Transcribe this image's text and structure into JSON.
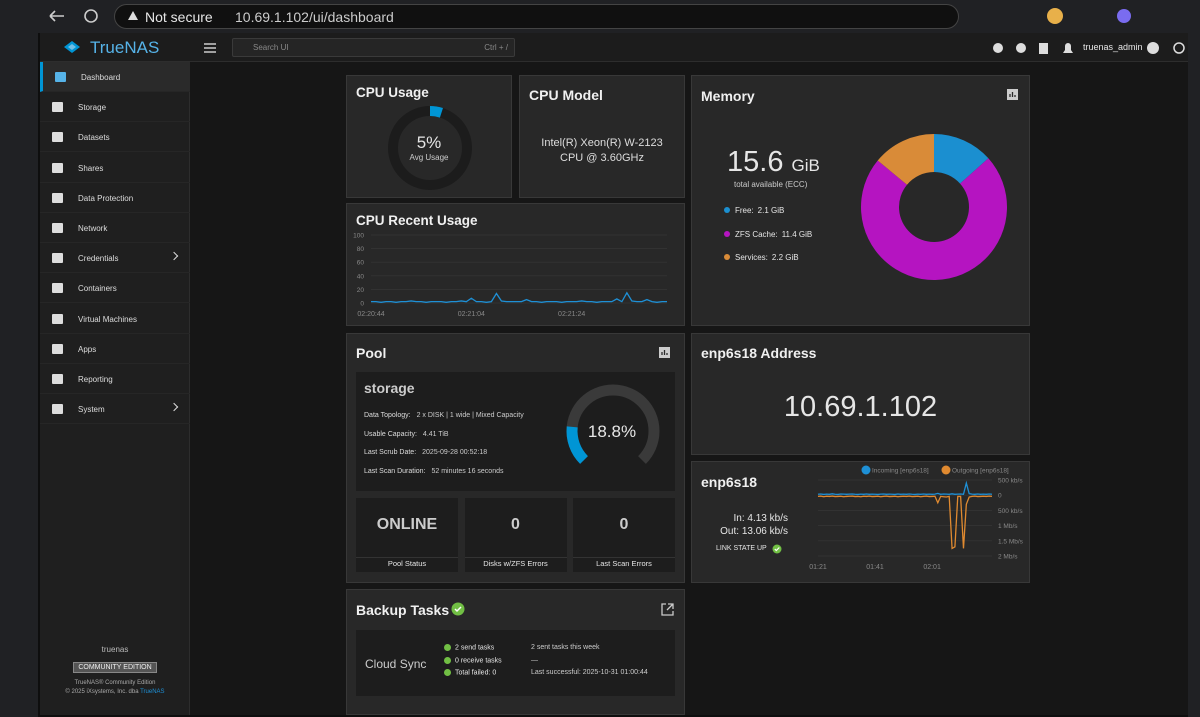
{
  "browser": {
    "security": "Not secure",
    "url": "10.69.1.102/ui/dashboard"
  },
  "header": {
    "brand": "TrueNAS",
    "search": "Search UI",
    "shortcut": "Ctrl + /",
    "user": "truenas_admin"
  },
  "sidebar": {
    "items": [
      "Dashboard",
      "Storage",
      "Datasets",
      "Shares",
      "Data Protection",
      "Network",
      "Credentials",
      "Containers",
      "Virtual Machines",
      "Apps",
      "Reporting",
      "System"
    ],
    "hostname": "truenas",
    "edition": "COMMUNITY EDITION",
    "footer": "TrueNAS® Community Edition",
    "copyright": "© 2025 iXsystems, Inc. dba",
    "link": "TrueNAS"
  },
  "cpu_usage": {
    "title": "CPU Usage",
    "value": 5,
    "value_label": "5%",
    "caption": "Avg Usage"
  },
  "cpu_model": {
    "title": "CPU Model",
    "text": "Intel(R) Xeon(R) W-2123 CPU @ 3.60GHz"
  },
  "memory": {
    "title": "Memory",
    "total": 15.6,
    "unit": "GiB",
    "caption": "total available (ECC)"
  },
  "pool": {
    "title": "Pool",
    "name": "storage",
    "rows": [
      [
        "Data Topology:",
        "2 x DISK | 1 wide | Mixed Capacity"
      ],
      [
        "Usable Capacity:",
        "4.41 TiB"
      ],
      [
        "Last Scrub Date:",
        "2025-09-28 00:52:18"
      ],
      [
        "Last Scan Duration:",
        "52 minutes 16 seconds"
      ]
    ],
    "used": 18.8,
    "used_label": "18.8%",
    "stats": [
      [
        "ONLINE",
        "Pool Status"
      ],
      [
        0,
        "Disks w/ZFS Errors"
      ],
      [
        0,
        "Last Scan Errors"
      ]
    ]
  },
  "address": {
    "title": "enp6s18 Address",
    "ip": "10.69.1.102"
  },
  "network": {
    "title": "enp6s18",
    "in_label": "In:",
    "in_value": "4.13 kb/s",
    "out_label": "Out:",
    "out_value": "13.06 kb/s",
    "link": "LINK STATE UP"
  },
  "backup": {
    "title": "Backup Tasks",
    "type": "Cloud Sync",
    "items": [
      "2 send tasks",
      "0 receive tasks",
      "Total failed: 0"
    ],
    "summary": [
      "2 sent tasks this week",
      "—",
      "Last successful: 2025-10-31 01:00:44"
    ]
  },
  "chart_data": [
    {
      "type": "line",
      "title": "CPU Recent Usage",
      "categories": [
        "02:20:44",
        null,
        null,
        null,
        null,
        null,
        null,
        null,
        null,
        null,
        null,
        null,
        null,
        null,
        null,
        null,
        null,
        null,
        null,
        null,
        "02:21:04",
        null,
        null,
        null,
        null,
        null,
        null,
        null,
        null,
        null,
        null,
        null,
        null,
        null,
        null,
        null,
        null,
        null,
        null,
        null,
        "02:21:24",
        null,
        null,
        null,
        null,
        null,
        null,
        null,
        null,
        null,
        null,
        null,
        null,
        null,
        null,
        null,
        null,
        null,
        null,
        null
      ],
      "series": [
        {
          "color": "#1e90d6",
          "values": [
            2,
            2,
            1,
            2,
            2,
            1,
            2,
            2,
            3,
            2,
            2,
            1,
            2,
            2,
            2,
            1,
            2,
            2,
            3,
            2,
            7,
            2,
            2,
            1,
            2,
            14,
            3,
            2,
            2,
            2,
            2,
            5,
            2,
            2,
            1,
            2,
            2,
            2,
            1,
            2,
            2,
            2,
            3,
            2,
            2,
            1,
            2,
            2,
            2,
            6,
            2,
            15,
            3,
            2,
            2,
            5,
            2,
            1,
            2,
            2
          ]
        }
      ],
      "ylim": [
        0,
        100
      ],
      "yticks": [
        0,
        20,
        40,
        60,
        80,
        100
      ],
      "grid": true
    },
    {
      "type": "pie",
      "categories": [
        "Free:",
        "ZFS Cache:",
        "Services:"
      ],
      "values": [
        2.1,
        11.4,
        2.2
      ],
      "value_labels": [
        "2.1 GiB",
        "11.4 GiB",
        "2.2 GiB"
      ],
      "colors": [
        "#1b8fd0",
        "#b514c1",
        "#d98b38"
      ]
    },
    {
      "type": "line",
      "categories": [
        "01:21",
        null,
        null,
        null,
        null,
        null,
        null,
        null,
        null,
        null,
        null,
        null,
        null,
        null,
        null,
        null,
        null,
        null,
        null,
        null,
        "01:41",
        null,
        null,
        null,
        null,
        null,
        null,
        null,
        null,
        null,
        null,
        null,
        null,
        null,
        null,
        null,
        null,
        null,
        null,
        null,
        "02:01",
        null,
        null,
        null,
        null,
        null,
        null,
        null,
        null,
        null,
        null,
        null,
        null,
        null,
        null,
        null,
        null,
        null,
        null,
        null,
        null,
        null
      ],
      "series": [
        {
          "name": "Incoming [enp6s18]",
          "color": "#1e90d6",
          "values": [
            30,
            40,
            25,
            35,
            30,
            45,
            30,
            25,
            40,
            35,
            30,
            35,
            40,
            30,
            25,
            35,
            30,
            40,
            30,
            35,
            30,
            25,
            35,
            40,
            30,
            35,
            30,
            25,
            40,
            30,
            35,
            30,
            40,
            30,
            25,
            35,
            30,
            40,
            30,
            35,
            30,
            35,
            60,
            30,
            40,
            35,
            30,
            45,
            30,
            35,
            40,
            30,
            400,
            50,
            35,
            30,
            40,
            30,
            35,
            30,
            40,
            30
          ]
        },
        {
          "name": "Outgoing [enp6s18]",
          "color": "#e08a30",
          "values": [
            -40,
            -30,
            -50,
            -35,
            -40,
            -30,
            -45,
            -40,
            -35,
            -50,
            -40,
            -35,
            -30,
            -45,
            -40,
            -50,
            -35,
            -40,
            -30,
            -45,
            -40,
            -35,
            -50,
            -40,
            -30,
            -45,
            -40,
            -35,
            -50,
            -40,
            -35,
            -40,
            -30,
            -45,
            -40,
            -35,
            -50,
            -40,
            -30,
            -45,
            -40,
            -35,
            -250,
            -40,
            -50,
            -60,
            -40,
            -1750,
            -1700,
            -40,
            -40,
            -1750,
            -300,
            -60,
            -40,
            -30,
            -45,
            -40,
            -35,
            -40,
            -30,
            -40
          ]
        }
      ],
      "ylim": [
        -2000,
        500
      ],
      "yticks": [
        {
          "value": 500,
          "label": "500 kb/s"
        },
        0,
        {
          "value": -500,
          "label": "500 kb/s"
        },
        {
          "value": -1000,
          "label": "1 Mb/s"
        },
        {
          "value": -1500,
          "label": "1.5 Mb/s"
        },
        {
          "value": -2000,
          "label": "2 Mb/s"
        }
      ],
      "grid": true
    }
  ]
}
